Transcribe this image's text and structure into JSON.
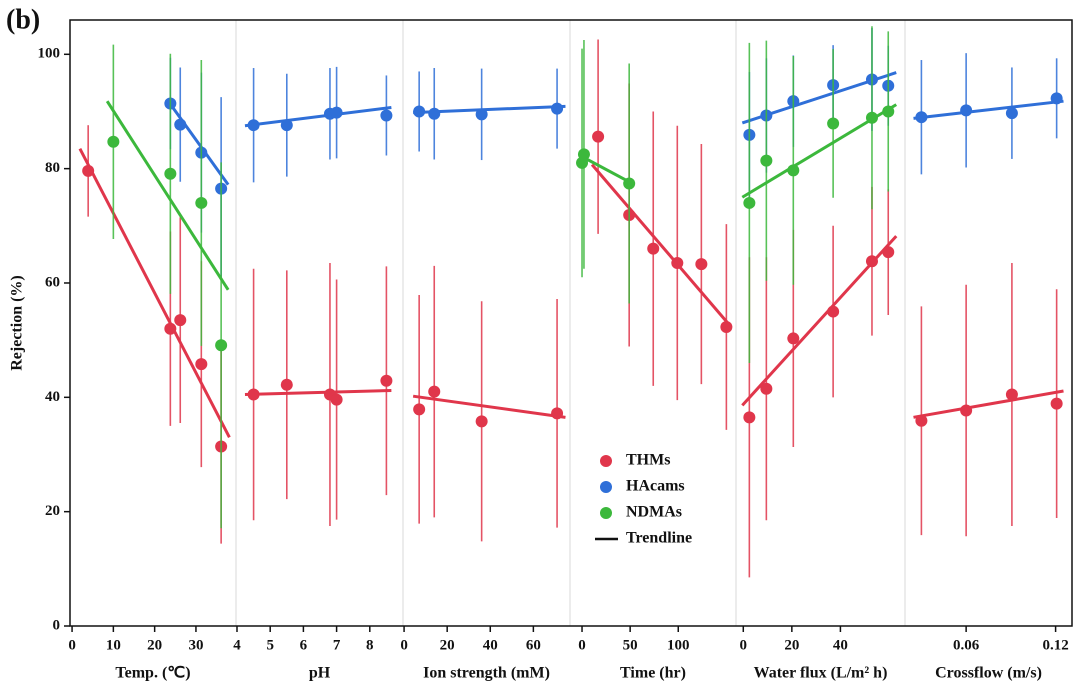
{
  "chart_data": {
    "type": "scatter",
    "panel_label": "(b)",
    "ylabel": "Rejection (%)",
    "ylim": [
      0,
      106
    ],
    "yticks": [
      0,
      20,
      40,
      60,
      80,
      100
    ],
    "legend": [
      "THMs",
      "HAcams",
      "NDMAs",
      "Trendline"
    ],
    "colors": {
      "THMs": "#e0364b",
      "HAcams": "#2f6fd8",
      "NDMAs": "#3cb83c",
      "Trendline": "#111111"
    },
    "panels": [
      {
        "xlabel": "Temp. (℃)",
        "xlim": [
          -0.5,
          39.7
        ],
        "xticks": [
          0,
          10,
          20,
          30
        ],
        "series": [
          {
            "name": "THMs",
            "x": [
              3.9,
              23.8,
              26.2,
              31.3,
              36.1
            ],
            "values": [
              79.6,
              52,
              53.5,
              45.8,
              31.4
            ],
            "errors": [
              8,
              17,
              18,
              18,
              17
            ],
            "trend_x": [
              1.9,
              38.1
            ],
            "trend_y": [
              83.5,
              33
            ]
          },
          {
            "name": "HAcams",
            "x": [
              23.8,
              26.2,
              31.3,
              36.1
            ],
            "values": [
              91.4,
              87.7,
              82.8,
              76.5
            ],
            "errors": [
              8,
              10,
              14,
              16
            ],
            "trend_x": [
              23,
              37.8
            ],
            "trend_y": [
              92.1,
              77.2
            ]
          },
          {
            "name": "NDMAs",
            "x": [
              10,
              23.8,
              31.3,
              36.1
            ],
            "values": [
              84.7,
              79.1,
              74,
              49.1
            ],
            "errors": [
              17,
              21,
              25,
              32
            ],
            "trend_x": [
              8.5,
              37.8
            ],
            "trend_y": [
              91.8,
              58.8
            ]
          }
        ]
      },
      {
        "xlabel": "pH",
        "xlim": [
          3.97,
          9
        ],
        "xticks": [
          4,
          5,
          6,
          7,
          8
        ],
        "series": [
          {
            "name": "THMs",
            "x": [
              4.5,
              5.5,
              6.8,
              7,
              8.5
            ],
            "values": [
              40.5,
              42.2,
              40.5,
              39.6,
              42.9
            ],
            "errors": [
              22,
              20,
              23,
              21,
              20
            ],
            "trend_x": [
              4.24,
              8.65
            ],
            "trend_y": [
              40.5,
              41.2
            ]
          },
          {
            "name": "HAcams",
            "x": [
              4.5,
              5.5,
              6.8,
              7,
              8.5
            ],
            "values": [
              87.6,
              87.6,
              89.6,
              89.8,
              89.3
            ],
            "errors": [
              10,
              9,
              8,
              8,
              7
            ],
            "trend_x": [
              4.24,
              8.65
            ],
            "trend_y": [
              87.5,
              90.7
            ]
          }
        ]
      },
      {
        "xlabel": "Ion strength (mM)",
        "xlim": [
          -0.5,
          77
        ],
        "xticks": [
          0,
          20,
          40,
          60
        ],
        "series": [
          {
            "name": "THMs",
            "x": [
              7,
              14,
              36,
              71
            ],
            "values": [
              37.9,
              41,
              35.8,
              37.2
            ],
            "errors": [
              20,
              22,
              21,
              20
            ],
            "trend_x": [
              4.2,
              74.9
            ],
            "trend_y": [
              40.2,
              36.5
            ]
          },
          {
            "name": "HAcams",
            "x": [
              7,
              14,
              36,
              71
            ],
            "values": [
              90,
              89.6,
              89.5,
              90.5
            ],
            "errors": [
              7,
              8,
              8,
              7
            ],
            "trend_x": [
              4.2,
              74.9
            ],
            "trend_y": [
              89.8,
              90.9
            ]
          }
        ]
      },
      {
        "xlabel": "Time (hr)",
        "xlim": [
          -12.5,
          160
        ],
        "xticks": [
          0,
          50,
          100
        ],
        "series": [
          {
            "name": "THMs",
            "x": [
              16.7,
              49,
              74,
              99,
              124,
              150
            ],
            "values": [
              85.6,
              71.9,
              66,
              63.5,
              63.3,
              52.3
            ],
            "errors": [
              17,
              23,
              24,
              24,
              21,
              18
            ],
            "trend_x": [
              10.4,
              154
            ],
            "trend_y": [
              80.7,
              52.5
            ]
          },
          {
            "name": "NDMAs",
            "x": [
              0,
              2,
              49
            ],
            "values": [
              81,
              82.5,
              77.4
            ],
            "errors": [
              20,
              20,
              21
            ],
            "trend_x": [
              0,
              49
            ],
            "trend_y": [
              82.1,
              77.7
            ]
          }
        ]
      },
      {
        "xlabel": "Water flux (L/m² h)",
        "xlim": [
          -3,
          66.6
        ],
        "xticks": [
          0,
          20,
          40
        ],
        "series": [
          {
            "name": "THMs",
            "x": [
              2.5,
              9.5,
              20.6,
              37,
              53,
              59.7
            ],
            "values": [
              36.5,
              41.5,
              50.3,
              55,
              63.8,
              65.4
            ],
            "errors": [
              28,
              23,
              19,
              15,
              13,
              11
            ],
            "trend_x": [
              -0.4,
              63
            ],
            "trend_y": [
              38.6,
              68.2
            ]
          },
          {
            "name": "HAcams",
            "x": [
              2.5,
              9.5,
              20.6,
              37,
              53,
              59.7
            ],
            "values": [
              85.9,
              89.3,
              91.8,
              94.6,
              95.6,
              94.5
            ],
            "errors": [
              11,
              10,
              8,
              7,
              9,
              7
            ],
            "trend_x": [
              -0.4,
              63
            ],
            "trend_y": [
              88,
              96.8
            ]
          },
          {
            "name": "NDMAs",
            "x": [
              2.5,
              9.5,
              20.6,
              37,
              53,
              59.7
            ],
            "values": [
              74,
              81.4,
              79.7,
              87.9,
              88.9,
              90
            ],
            "errors": [
              28,
              21,
              20,
              13,
              16,
              14
            ],
            "trend_x": [
              -0.4,
              63
            ],
            "trend_y": [
              75,
              91.2
            ]
          }
        ]
      },
      {
        "xlabel": "Crossflow  (m/s)",
        "xlim": [
          0.019,
          0.131
        ],
        "xticks": [
          0.06,
          0.12
        ],
        "series": [
          {
            "name": "THMs",
            "x": [
              0.03,
              0.06,
              0.0907,
              0.1207
            ],
            "values": [
              35.9,
              37.7,
              40.5,
              38.9
            ],
            "errors": [
              20,
              22,
              23,
              20
            ],
            "trend_x": [
              0.0247,
              0.1253
            ],
            "trend_y": [
              36.5,
              41.1
            ]
          },
          {
            "name": "HAcams",
            "x": [
              0.03,
              0.06,
              0.0907,
              0.1207
            ],
            "values": [
              89,
              90.2,
              89.7,
              92.3
            ],
            "errors": [
              10,
              10,
              8,
              7
            ],
            "trend_x": [
              0.0247,
              0.1253
            ],
            "trend_y": [
              88.8,
              91.8
            ]
          }
        ]
      }
    ]
  }
}
